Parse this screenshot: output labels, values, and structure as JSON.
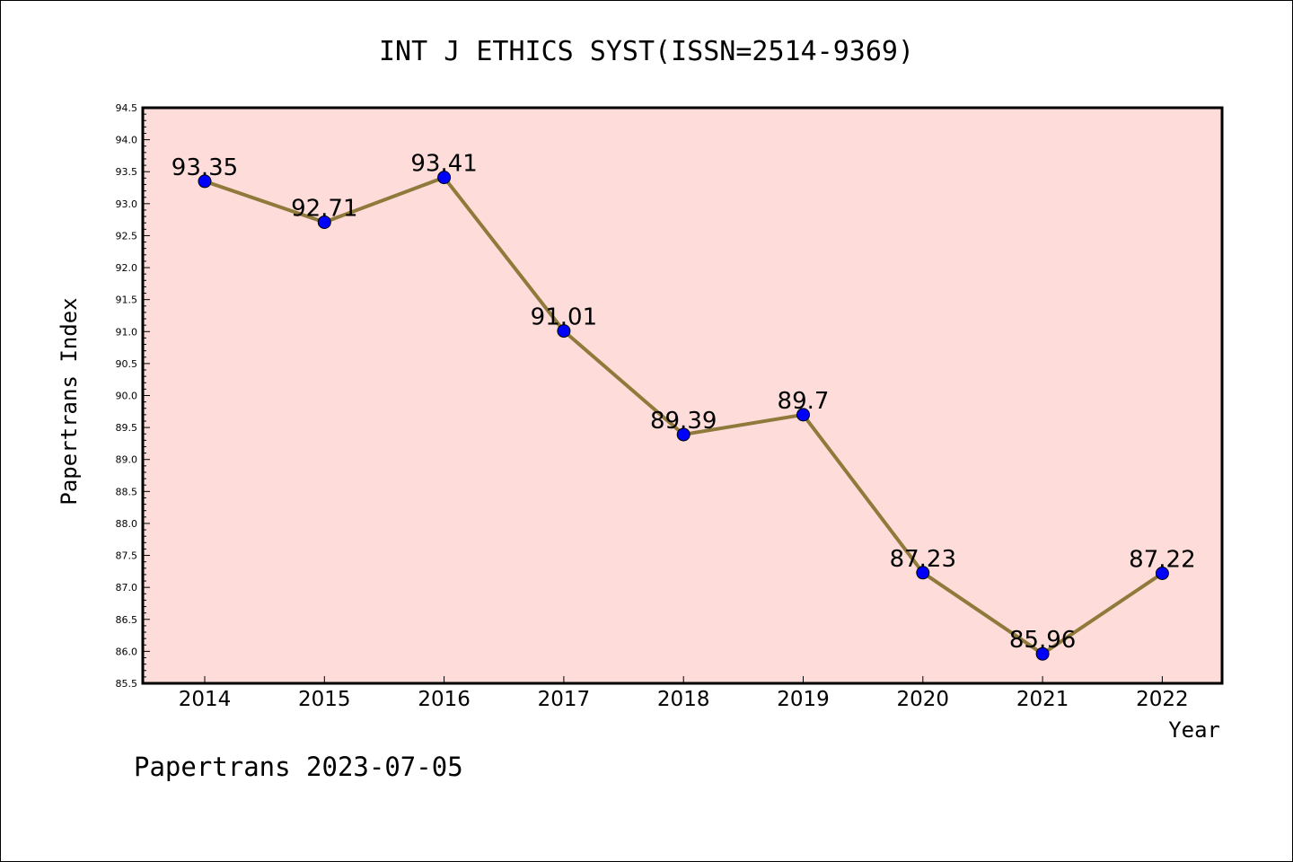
{
  "chart_data": {
    "type": "line",
    "title": "INT J ETHICS SYST(ISSN=2514-9369)",
    "xlabel": "Year",
    "ylabel": "Papertrans Index",
    "categories": [
      "2014",
      "2015",
      "2016",
      "2017",
      "2018",
      "2019",
      "2020",
      "2021",
      "2022"
    ],
    "series": [
      {
        "values": [
          93.35,
          92.71,
          93.41,
          91.01,
          89.39,
          89.7,
          87.23,
          85.96,
          87.22
        ],
        "data_labels": [
          "93.35",
          "92.71",
          "93.41",
          "91.01",
          "89.39",
          "89.7",
          "87.23",
          "85.96",
          "87.22"
        ]
      }
    ],
    "ylim": [
      85.5,
      94.5
    ],
    "yticks": [
      "85.5",
      "86.0",
      "86.5",
      "87.0",
      "87.5",
      "88.0",
      "88.5",
      "89.0",
      "89.5",
      "90.0",
      "90.5",
      "91.0",
      "91.5",
      "92.0",
      "92.5",
      "93.0",
      "93.5",
      "94.0",
      "94.5"
    ],
    "grid": false,
    "colors": {
      "plot_background": "#FDDCDA",
      "line": "#8F7A3C",
      "marker": "#0000FF"
    }
  },
  "footer": {
    "text": "Papertrans 2023-07-05"
  }
}
